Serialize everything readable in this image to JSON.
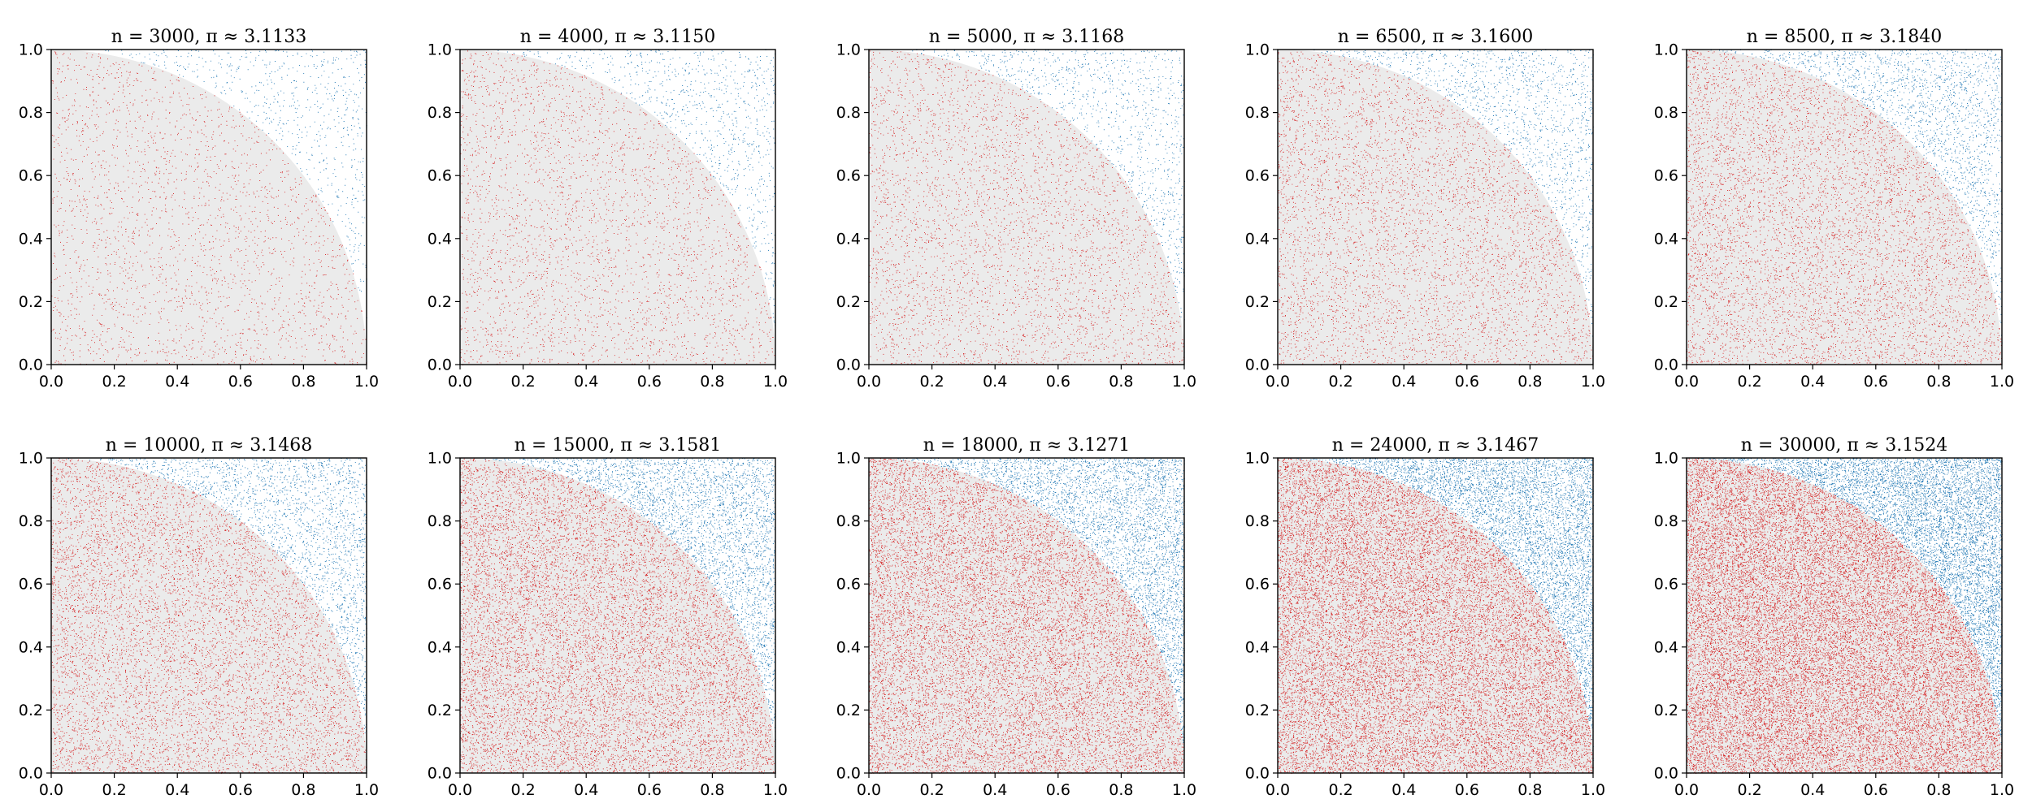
{
  "figure_title": "",
  "colors": {
    "inside": "#d62728",
    "outside": "#1f77b4",
    "region": "#ebebeb",
    "axis": "#000000"
  },
  "chart_data": [
    {
      "type": "scatter",
      "title": "n = 3000, π ≈ 3.1133",
      "n": 3000,
      "pi_estimate": 3.1133,
      "xlim": [
        0,
        1
      ],
      "ylim": [
        0,
        1
      ],
      "xticks": [
        "0.0",
        "0.2",
        "0.4",
        "0.6",
        "0.8",
        "1.0"
      ],
      "yticks": [
        "0.0",
        "0.2",
        "0.4",
        "0.6",
        "0.8",
        "1.0"
      ],
      "series": [
        {
          "name": "inside unit quarter-circle",
          "color": "#d62728"
        },
        {
          "name": "outside unit quarter-circle",
          "color": "#1f77b4"
        }
      ]
    },
    {
      "type": "scatter",
      "title": "n = 4000, π ≈ 3.1150",
      "n": 4000,
      "pi_estimate": 3.115,
      "xlim": [
        0,
        1
      ],
      "ylim": [
        0,
        1
      ],
      "xticks": [
        "0.0",
        "0.2",
        "0.4",
        "0.6",
        "0.8",
        "1.0"
      ],
      "yticks": [
        "0.0",
        "0.2",
        "0.4",
        "0.6",
        "0.8",
        "1.0"
      ],
      "series": [
        {
          "name": "inside unit quarter-circle",
          "color": "#d62728"
        },
        {
          "name": "outside unit quarter-circle",
          "color": "#1f77b4"
        }
      ]
    },
    {
      "type": "scatter",
      "title": "n = 5000, π ≈ 3.1168",
      "n": 5000,
      "pi_estimate": 3.1168,
      "xlim": [
        0,
        1
      ],
      "ylim": [
        0,
        1
      ],
      "xticks": [
        "0.0",
        "0.2",
        "0.4",
        "0.6",
        "0.8",
        "1.0"
      ],
      "yticks": [
        "0.0",
        "0.2",
        "0.4",
        "0.6",
        "0.8",
        "1.0"
      ],
      "series": [
        {
          "name": "inside unit quarter-circle",
          "color": "#d62728"
        },
        {
          "name": "outside unit quarter-circle",
          "color": "#1f77b4"
        }
      ]
    },
    {
      "type": "scatter",
      "title": "n = 6500, π ≈ 3.1600",
      "n": 6500,
      "pi_estimate": 3.16,
      "xlim": [
        0,
        1
      ],
      "ylim": [
        0,
        1
      ],
      "xticks": [
        "0.0",
        "0.2",
        "0.4",
        "0.6",
        "0.8",
        "1.0"
      ],
      "yticks": [
        "0.0",
        "0.2",
        "0.4",
        "0.6",
        "0.8",
        "1.0"
      ],
      "series": [
        {
          "name": "inside unit quarter-circle",
          "color": "#d62728"
        },
        {
          "name": "outside unit quarter-circle",
          "color": "#1f77b4"
        }
      ]
    },
    {
      "type": "scatter",
      "title": "n = 8500, π ≈ 3.1840",
      "n": 8500,
      "pi_estimate": 3.184,
      "xlim": [
        0,
        1
      ],
      "ylim": [
        0,
        1
      ],
      "xticks": [
        "0.0",
        "0.2",
        "0.4",
        "0.6",
        "0.8",
        "1.0"
      ],
      "yticks": [
        "0.0",
        "0.2",
        "0.4",
        "0.6",
        "0.8",
        "1.0"
      ],
      "series": [
        {
          "name": "inside unit quarter-circle",
          "color": "#d62728"
        },
        {
          "name": "outside unit quarter-circle",
          "color": "#1f77b4"
        }
      ]
    },
    {
      "type": "scatter",
      "title": "n = 10000, π ≈ 3.1468",
      "n": 10000,
      "pi_estimate": 3.1468,
      "xlim": [
        0,
        1
      ],
      "ylim": [
        0,
        1
      ],
      "xticks": [
        "0.0",
        "0.2",
        "0.4",
        "0.6",
        "0.8",
        "1.0"
      ],
      "yticks": [
        "0.0",
        "0.2",
        "0.4",
        "0.6",
        "0.8",
        "1.0"
      ],
      "series": [
        {
          "name": "inside unit quarter-circle",
          "color": "#d62728"
        },
        {
          "name": "outside unit quarter-circle",
          "color": "#1f77b4"
        }
      ]
    },
    {
      "type": "scatter",
      "title": "n = 15000, π ≈ 3.1581",
      "n": 15000,
      "pi_estimate": 3.1581,
      "xlim": [
        0,
        1
      ],
      "ylim": [
        0,
        1
      ],
      "xticks": [
        "0.0",
        "0.2",
        "0.4",
        "0.6",
        "0.8",
        "1.0"
      ],
      "yticks": [
        "0.0",
        "0.2",
        "0.4",
        "0.6",
        "0.8",
        "1.0"
      ],
      "series": [
        {
          "name": "inside unit quarter-circle",
          "color": "#d62728"
        },
        {
          "name": "outside unit quarter-circle",
          "color": "#1f77b4"
        }
      ]
    },
    {
      "type": "scatter",
      "title": "n = 18000, π ≈ 3.1271",
      "n": 18000,
      "pi_estimate": 3.1271,
      "xlim": [
        0,
        1
      ],
      "ylim": [
        0,
        1
      ],
      "xticks": [
        "0.0",
        "0.2",
        "0.4",
        "0.6",
        "0.8",
        "1.0"
      ],
      "yticks": [
        "0.0",
        "0.2",
        "0.4",
        "0.6",
        "0.8",
        "1.0"
      ],
      "series": [
        {
          "name": "inside unit quarter-circle",
          "color": "#d62728"
        },
        {
          "name": "outside unit quarter-circle",
          "color": "#1f77b4"
        }
      ]
    },
    {
      "type": "scatter",
      "title": "n = 24000, π ≈ 3.1467",
      "n": 24000,
      "pi_estimate": 3.1467,
      "xlim": [
        0,
        1
      ],
      "ylim": [
        0,
        1
      ],
      "xticks": [
        "0.0",
        "0.2",
        "0.4",
        "0.6",
        "0.8",
        "1.0"
      ],
      "yticks": [
        "0.0",
        "0.2",
        "0.4",
        "0.6",
        "0.8",
        "1.0"
      ],
      "series": [
        {
          "name": "inside unit quarter-circle",
          "color": "#d62728"
        },
        {
          "name": "outside unit quarter-circle",
          "color": "#1f77b4"
        }
      ]
    },
    {
      "type": "scatter",
      "title": "n = 30000, π ≈ 3.1524",
      "n": 30000,
      "pi_estimate": 3.1524,
      "xlim": [
        0,
        1
      ],
      "ylim": [
        0,
        1
      ],
      "xticks": [
        "0.0",
        "0.2",
        "0.4",
        "0.6",
        "0.8",
        "1.0"
      ],
      "yticks": [
        "0.0",
        "0.2",
        "0.4",
        "0.6",
        "0.8",
        "1.0"
      ],
      "series": [
        {
          "name": "inside unit quarter-circle",
          "color": "#d62728"
        },
        {
          "name": "outside unit quarter-circle",
          "color": "#1f77b4"
        }
      ]
    }
  ]
}
